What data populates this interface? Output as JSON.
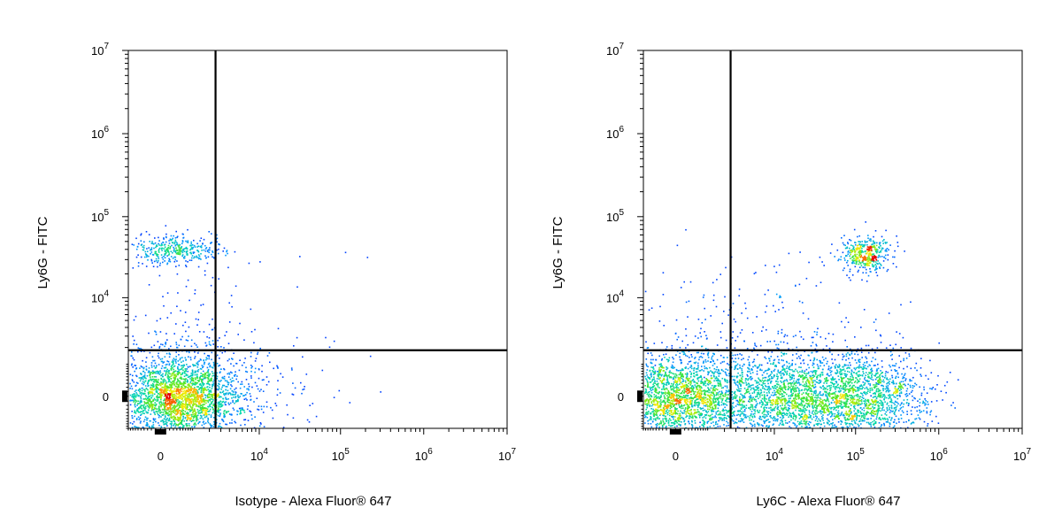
{
  "chart_data": [
    {
      "type": "scatter",
      "title": "",
      "xlabel": "Isotype - Alexa Fluor® 647",
      "ylabel": "Ly6G - FITC",
      "x_scale": "biexponential",
      "y_scale": "biexponential",
      "xlim": [
        -1000,
        10000000
      ],
      "ylim": [
        -1000,
        10000000
      ],
      "x_ticks": [
        {
          "value": 0,
          "base": "0",
          "exp": ""
        },
        {
          "value": 10000,
          "base": "10",
          "exp": "4"
        },
        {
          "value": 100000,
          "base": "10",
          "exp": "5"
        },
        {
          "value": 1000000,
          "base": "10",
          "exp": "6"
        },
        {
          "value": 10000000,
          "base": "10",
          "exp": "7"
        }
      ],
      "y_ticks": [
        {
          "value": 0,
          "base": "0",
          "exp": ""
        },
        {
          "value": 10000,
          "base": "10",
          "exp": "4"
        },
        {
          "value": 100000,
          "base": "10",
          "exp": "5"
        },
        {
          "value": 1000000,
          "base": "10",
          "exp": "6"
        },
        {
          "value": 10000000,
          "base": "10",
          "exp": "7"
        }
      ],
      "gate": {
        "x": 2500,
        "y": 1800
      },
      "color_scale": "density",
      "populations": [
        {
          "x": 500,
          "y": 0,
          "n": 2600
        },
        {
          "x": 300,
          "y": 40000,
          "n": 380
        },
        {
          "x": 800,
          "y": 3000,
          "n": 130
        },
        {
          "x": 10000,
          "y": 0,
          "n": 110
        },
        {
          "x": 50000,
          "y": 3000,
          "n": 18
        }
      ]
    },
    {
      "type": "scatter",
      "title": "",
      "xlabel": "Ly6C - Alexa Fluor® 647",
      "ylabel": "Ly6G - FITC",
      "x_scale": "biexponential",
      "y_scale": "biexponential",
      "xlim": [
        -1000,
        10000000
      ],
      "ylim": [
        -1000,
        10000000
      ],
      "x_ticks": [
        {
          "value": 0,
          "base": "0",
          "exp": ""
        },
        {
          "value": 10000,
          "base": "10",
          "exp": "4"
        },
        {
          "value": 100000,
          "base": "10",
          "exp": "5"
        },
        {
          "value": 1000000,
          "base": "10",
          "exp": "6"
        },
        {
          "value": 10000000,
          "base": "10",
          "exp": "7"
        }
      ],
      "y_ticks": [
        {
          "value": 0,
          "base": "0",
          "exp": ""
        },
        {
          "value": 10000,
          "base": "10",
          "exp": "4"
        },
        {
          "value": 100000,
          "base": "10",
          "exp": "5"
        },
        {
          "value": 1000000,
          "base": "10",
          "exp": "6"
        },
        {
          "value": 10000000,
          "base": "10",
          "exp": "7"
        }
      ],
      "gate": {
        "x": 2500,
        "y": 1800
      },
      "color_scale": "density",
      "populations": [
        {
          "x": 0,
          "y": 0,
          "n": 2300
        },
        {
          "x": 20000,
          "y": 0,
          "n": 2100
        },
        {
          "x": 150000,
          "y": 0,
          "n": 1000
        },
        {
          "x": 130000,
          "y": 35000,
          "n": 420
        },
        {
          "x": 5000,
          "y": 3000,
          "n": 260
        }
      ]
    }
  ]
}
